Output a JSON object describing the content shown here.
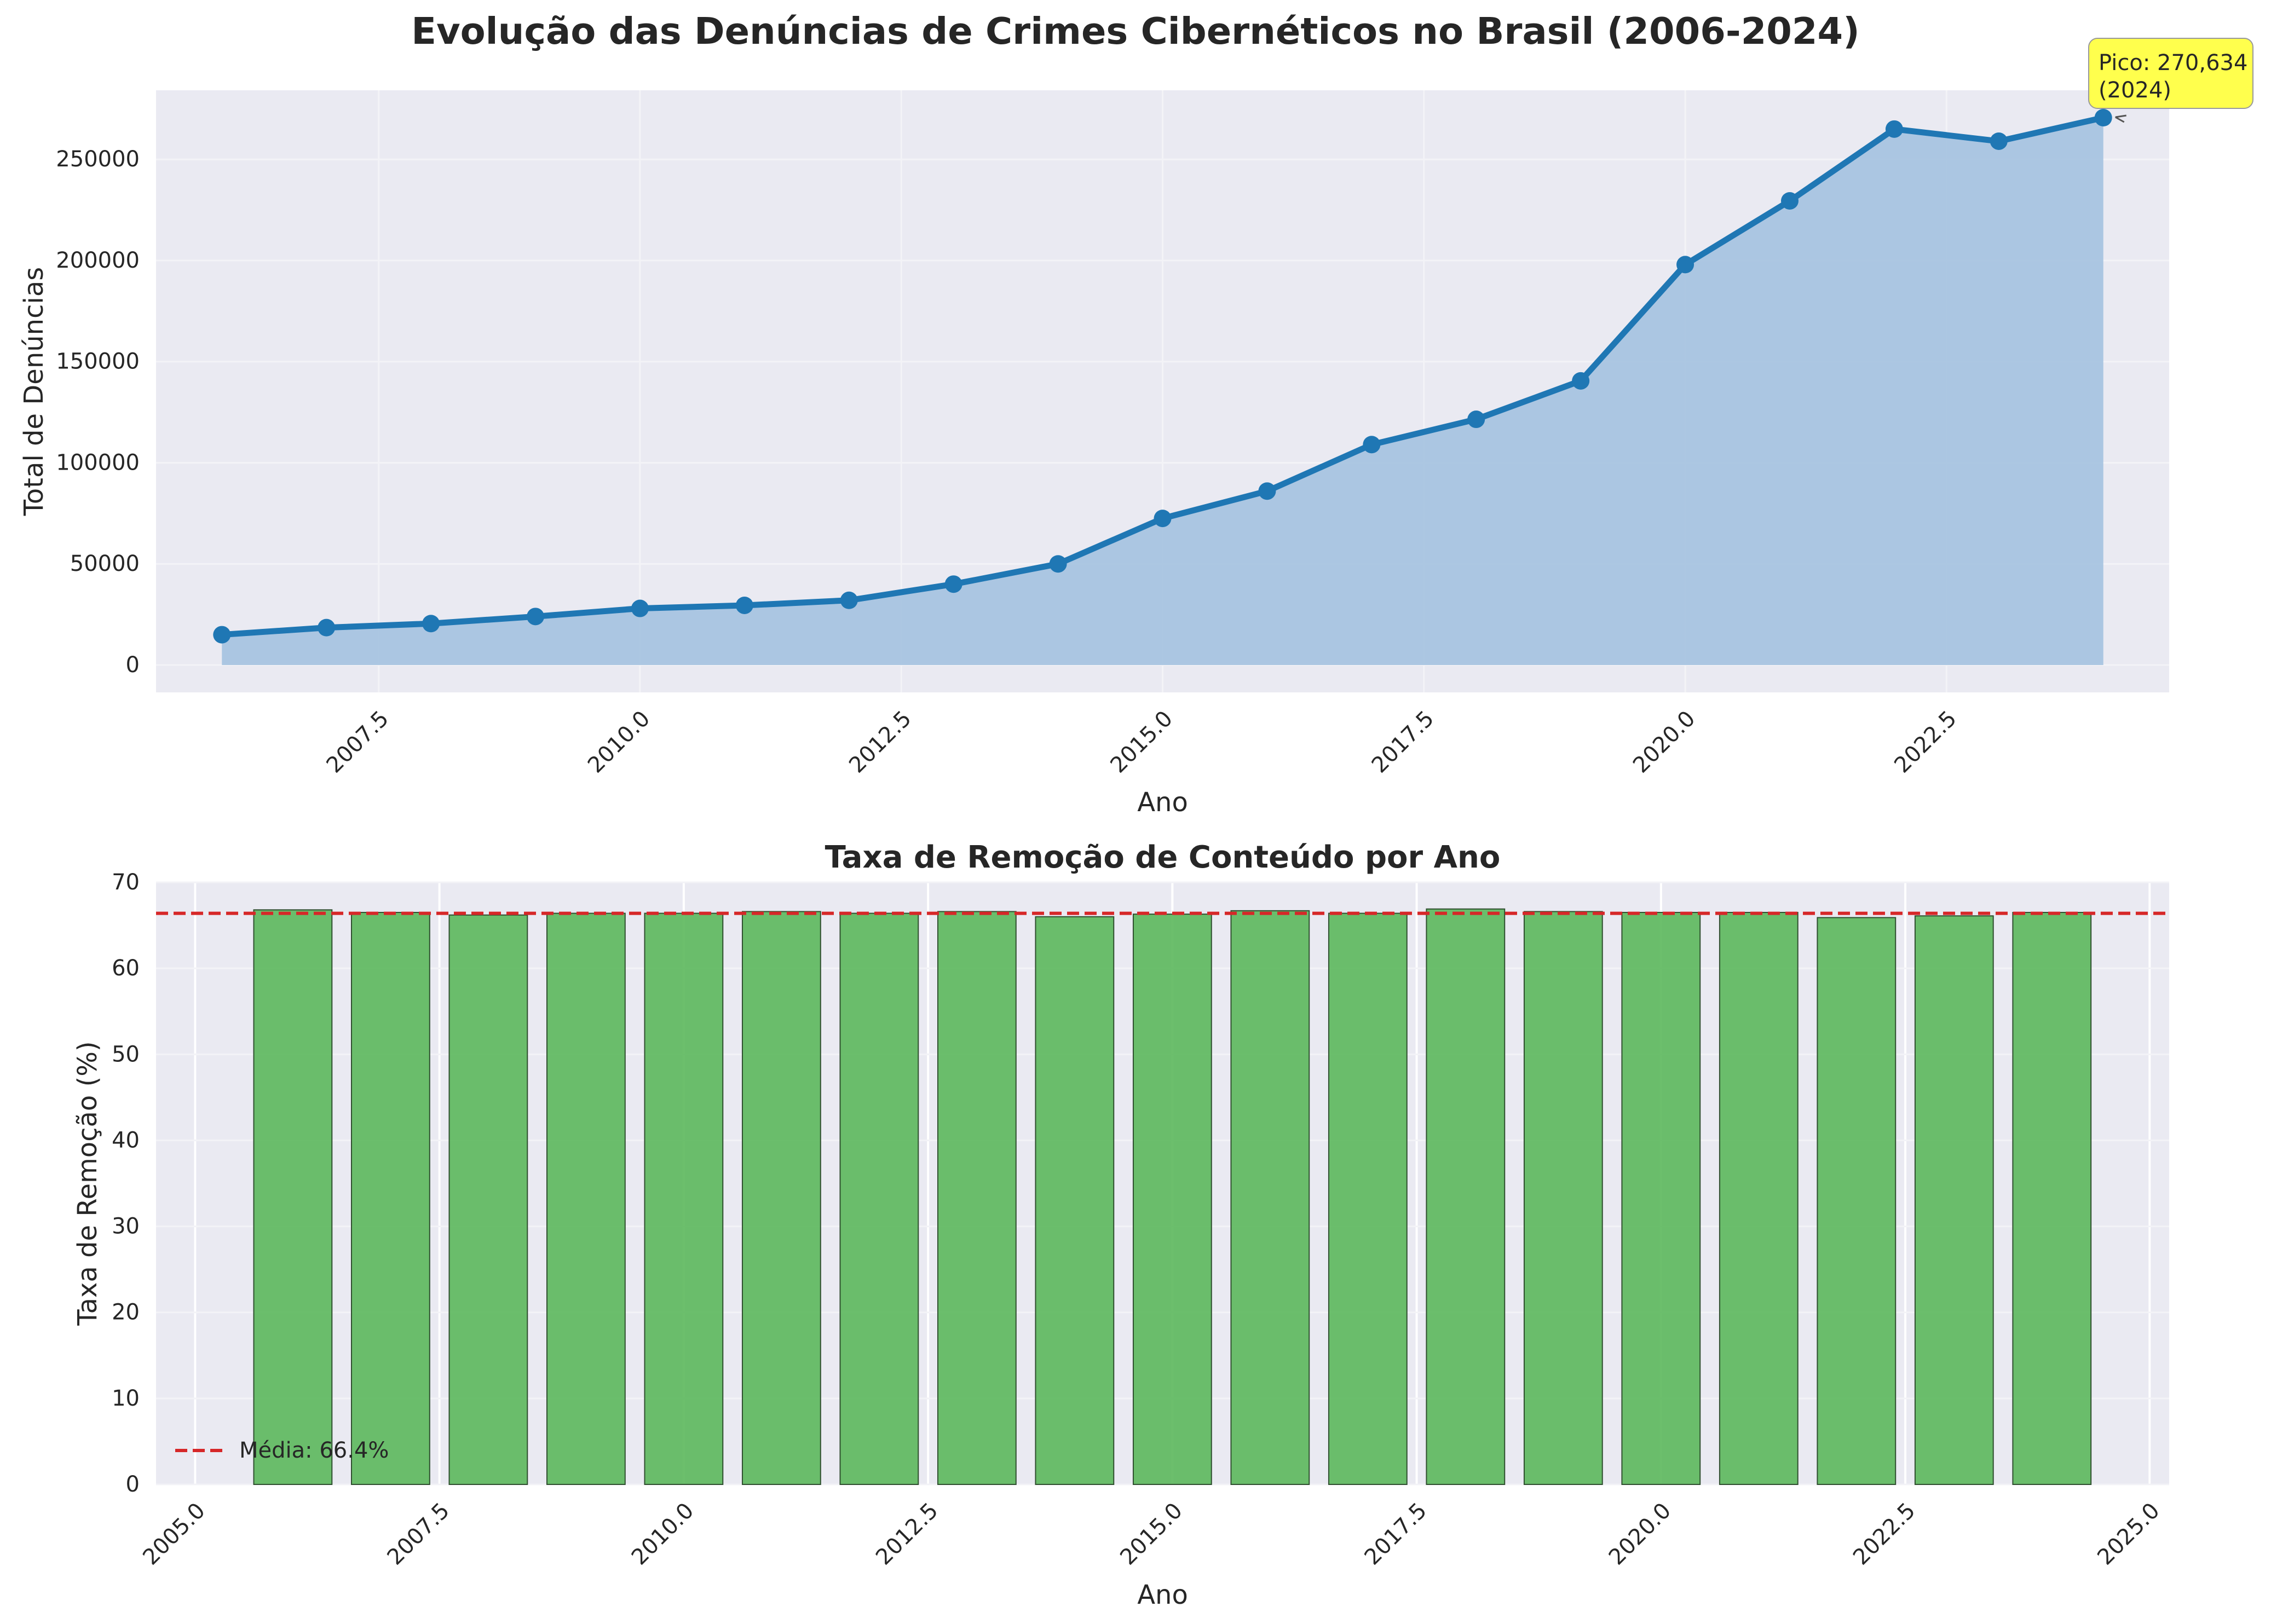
{
  "figure": {
    "title": "Evolução das Denúncias de Crimes Cibernéticos no Brasil (2006-2024)"
  },
  "colors": {
    "line": "#1f77b4",
    "area": "#a8c4e0",
    "bars": "#5cb85c",
    "mean_line": "#d62728",
    "plot_bg": "#eaeaf2",
    "annotation_bg": "#ffff4d"
  },
  "chart_data": [
    {
      "type": "area",
      "title": "",
      "xlabel": "Ano",
      "ylabel": "Total de Denúncias",
      "xlim": [
        2005.37,
        2024.63
      ],
      "ylim": [
        -13532,
        284166
      ],
      "xticks": [
        2007.5,
        2010.0,
        2012.5,
        2015.0,
        2017.5,
        2020.0,
        2022.5
      ],
      "xtick_labels": [
        "2007.5",
        "2010.0",
        "2012.5",
        "2015.0",
        "2017.5",
        "2020.0",
        "2022.5"
      ],
      "yticks": [
        0,
        50000,
        100000,
        150000,
        200000,
        250000
      ],
      "ytick_labels": [
        "0",
        "50000",
        "100000",
        "150000",
        "200000",
        "250000"
      ],
      "grid": true,
      "series": [
        {
          "x": [
            2006,
            2007,
            2008,
            2009,
            2010,
            2011,
            2012,
            2013,
            2014,
            2015,
            2016,
            2017,
            2018,
            2019,
            2020,
            2021,
            2022,
            2023,
            2024
          ],
          "values": [
            15000,
            18500,
            20500,
            24000,
            28000,
            29500,
            32000,
            40000,
            50000,
            72500,
            86000,
            109000,
            121500,
            140500,
            198000,
            229500,
            265000,
            259000,
            270634
          ]
        }
      ],
      "annotation": {
        "text_line1": "Pico: 270,634",
        "text_line2": "(2024)",
        "x": 2024,
        "y": 270634
      }
    },
    {
      "type": "bar",
      "title": "Taxa de Remoção de Conteúdo por Ano",
      "xlabel": "Ano",
      "ylabel": "Taxa de Remoção (%)",
      "xlim": [
        2004.6,
        2025.2
      ],
      "ylim": [
        0,
        70
      ],
      "xticks": [
        2005.0,
        2007.5,
        2010.0,
        2012.5,
        2015.0,
        2017.5,
        2020.0,
        2022.5,
        2025.0
      ],
      "xtick_labels": [
        "2005.0",
        "2007.5",
        "2010.0",
        "2012.5",
        "2015.0",
        "2017.5",
        "2020.0",
        "2022.5",
        "2025.0"
      ],
      "yticks": [
        0,
        10,
        20,
        30,
        40,
        50,
        60,
        70
      ],
      "ytick_labels": [
        "0",
        "10",
        "20",
        "30",
        "40",
        "50",
        "60",
        "70"
      ],
      "grid": true,
      "legend": {
        "position": "bottom-left",
        "label": "Média: 66.4%"
      },
      "mean": 66.4,
      "categories": [
        2006,
        2007,
        2008,
        2009,
        2010,
        2011,
        2012,
        2013,
        2014,
        2015,
        2016,
        2017,
        2018,
        2019,
        2020,
        2021,
        2022,
        2023,
        2024
      ],
      "values": [
        66.8,
        66.5,
        66.2,
        66.4,
        66.4,
        66.6,
        66.4,
        66.6,
        66.0,
        66.3,
        66.7,
        66.4,
        66.9,
        66.6,
        66.5,
        66.5,
        65.9,
        66.1,
        66.5
      ]
    }
  ]
}
